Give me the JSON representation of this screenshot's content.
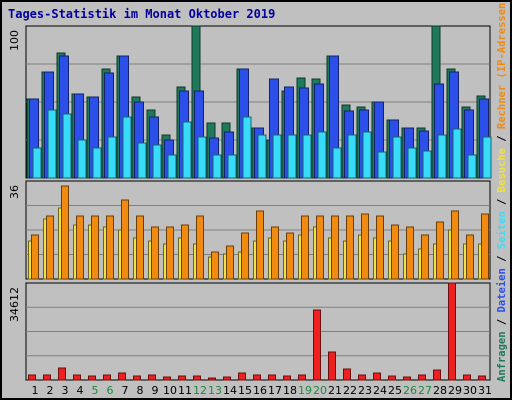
{
  "title": "Tages-Statistik im Monat Oktober 2019",
  "colors": {
    "hits": "#1e7a5a",
    "files": "#2b4fe8",
    "pages": "#38dcf8",
    "visits": "#f0e040",
    "sites": "#f08a10",
    "kbin": "#2b60d8",
    "kbout": "#1ea01e",
    "kbf": "#ee2020",
    "weekend_day": "#1e8a3c",
    "weekday": "#000080"
  },
  "chart_data": [
    {
      "type": "bar",
      "panel": "top",
      "ymax_label": "100",
      "ymax": 100,
      "categories": [
        "1",
        "2",
        "3",
        "4",
        "5",
        "6",
        "7",
        "8",
        "9",
        "10",
        "11",
        "12",
        "13",
        "14",
        "15",
        "16",
        "17",
        "18",
        "19",
        "20",
        "21",
        "22",
        "23",
        "24",
        "25",
        "26",
        "27",
        "28",
        "29",
        "30",
        "31"
      ],
      "weekend_days": [
        "5",
        "6",
        "12",
        "13",
        "19",
        "20",
        "26",
        "27"
      ],
      "series": [
        {
          "key": "hits",
          "values": [
            52,
            70,
            82,
            55,
            53,
            72,
            80,
            53,
            45,
            28,
            60,
            100,
            36,
            36,
            72,
            33,
            25,
            57,
            66,
            65,
            80,
            48,
            47,
            50,
            38,
            33,
            33,
            100,
            72,
            47,
            54
          ]
        },
        {
          "key": "files",
          "values": [
            52,
            70,
            80,
            55,
            53,
            69,
            80,
            50,
            40,
            25,
            57,
            57,
            26,
            30,
            72,
            33,
            65,
            60,
            59,
            62,
            80,
            44,
            45,
            50,
            38,
            33,
            31,
            62,
            70,
            45,
            52
          ]
        },
        {
          "key": "pages",
          "values": [
            20,
            45,
            42,
            25,
            20,
            27,
            40,
            23,
            22,
            15,
            37,
            27,
            15,
            15,
            40,
            28,
            28,
            28,
            28,
            30,
            20,
            28,
            30,
            17,
            27,
            20,
            18,
            28,
            32,
            15,
            27
          ]
        }
      ]
    },
    {
      "type": "bar",
      "panel": "middle",
      "ymax_label": "36",
      "ymax": 36,
      "categories": [
        "1",
        "2",
        "3",
        "4",
        "5",
        "6",
        "7",
        "8",
        "9",
        "10",
        "11",
        "12",
        "13",
        "14",
        "15",
        "16",
        "17",
        "18",
        "19",
        "20",
        "21",
        "22",
        "23",
        "24",
        "25",
        "26",
        "27",
        "28",
        "29",
        "30",
        "31"
      ],
      "series": [
        {
          "key": "visits",
          "values": [
            14,
            22,
            26,
            20,
            20,
            19,
            18,
            15,
            14,
            13,
            15,
            13,
            8,
            9,
            10,
            14,
            15,
            14,
            16,
            19,
            15,
            14,
            16,
            15,
            14,
            9,
            11,
            13,
            18,
            13,
            13
          ]
        },
        {
          "key": "sites",
          "values": [
            16,
            23,
            34,
            23,
            23,
            23,
            29,
            23,
            19,
            19,
            20,
            23,
            10,
            12,
            17,
            25,
            19,
            17,
            23,
            23,
            23,
            23,
            24,
            23,
            20,
            19,
            16,
            21,
            25,
            16,
            24
          ]
        }
      ]
    },
    {
      "type": "bar",
      "panel": "bottom",
      "ymax_label": "34612",
      "ymax": 34612,
      "categories": [
        "1",
        "2",
        "3",
        "4",
        "5",
        "6",
        "7",
        "8",
        "9",
        "10",
        "11",
        "12",
        "13",
        "14",
        "15",
        "16",
        "17",
        "18",
        "19",
        "20",
        "21",
        "22",
        "23",
        "24",
        "25",
        "26",
        "27",
        "28",
        "29",
        "30",
        "31"
      ],
      "series": [
        {
          "key": "kbf",
          "values": [
            1800,
            1800,
            4200,
            1800,
            1600,
            1800,
            2500,
            1600,
            1800,
            1000,
            1600,
            1600,
            800,
            1000,
            2500,
            1800,
            1800,
            1600,
            1800,
            25000,
            10000,
            3800,
            1800,
            2500,
            1600,
            1000,
            1800,
            3500,
            34612,
            1800,
            1600
          ]
        }
      ]
    }
  ],
  "legend_right": [
    {
      "key": "hits",
      "text": "Anfragen"
    },
    {
      "key": "sep",
      "text": " / "
    },
    {
      "key": "files",
      "text": "Dateien"
    },
    {
      "key": "sep",
      "text": " / "
    },
    {
      "key": "pages",
      "text": "Seiten"
    },
    {
      "key": "sep",
      "text": " / "
    },
    {
      "key": "visits",
      "text": "Besuche"
    },
    {
      "key": "sep",
      "text": " / "
    },
    {
      "key": "sites",
      "text": "Rechner (IP-Adressen)"
    },
    {
      "key": "sep",
      "text": " / "
    },
    {
      "key": "kbout",
      "text": "kB Out"
    },
    {
      "key": "sep",
      "text": " / "
    },
    {
      "key": "kbin",
      "text": "kB In"
    },
    {
      "key": "sep",
      "text": " / "
    },
    {
      "key": "kbf",
      "text": "kB F"
    }
  ]
}
